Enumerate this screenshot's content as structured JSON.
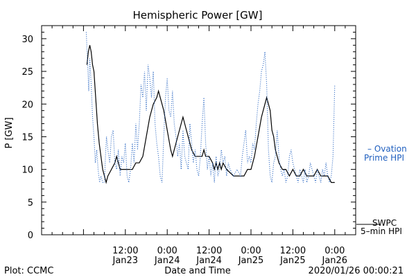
{
  "chart_data": {
    "type": "line",
    "title": "Hemispheric Power [GW]",
    "xlabel": "Date and Time",
    "ylabel": "P [GW]",
    "ylim": [
      0,
      32
    ],
    "yticks": [
      0,
      5,
      10,
      15,
      20,
      25,
      30
    ],
    "xlim_hours": [
      -18,
      72
    ],
    "xticks": [
      {
        "h": 6,
        "time": "12:00",
        "date": "Jan23"
      },
      {
        "h": 18,
        "time": "0:00",
        "date": "Jan24"
      },
      {
        "h": 30,
        "time": "12:00",
        "date": "Jan24"
      },
      {
        "h": 42,
        "time": "0:00",
        "date": "Jan25"
      },
      {
        "h": 54,
        "time": "12:00",
        "date": "Jan25"
      },
      {
        "h": 66,
        "time": "0:00",
        "date": "Jan26"
      }
    ],
    "series": [
      {
        "name": "SWPC 5-min HPI",
        "legend_line1": "SWPC",
        "legend_line2": "5–min HPI",
        "color": "#000000",
        "style": "solid",
        "points": [
          [
            -5,
            26
          ],
          [
            -4.6,
            28
          ],
          [
            -4.2,
            29
          ],
          [
            -3.8,
            28
          ],
          [
            -3.4,
            26
          ],
          [
            -3,
            25
          ],
          [
            -2.5,
            21
          ],
          [
            -2,
            17
          ],
          [
            -1.5,
            14
          ],
          [
            -1,
            12
          ],
          [
            -0.5,
            10
          ],
          [
            0,
            9
          ],
          [
            0.5,
            8
          ],
          [
            1,
            9
          ],
          [
            2,
            10
          ],
          [
            3,
            11
          ],
          [
            3.5,
            12
          ],
          [
            4,
            11
          ],
          [
            4.5,
            10
          ],
          [
            6,
            10
          ],
          [
            8,
            10
          ],
          [
            9,
            11
          ],
          [
            10,
            11
          ],
          [
            11,
            12
          ],
          [
            12,
            15
          ],
          [
            13,
            18
          ],
          [
            14,
            20
          ],
          [
            15,
            21
          ],
          [
            15.5,
            22
          ],
          [
            16,
            21
          ],
          [
            16.5,
            20
          ],
          [
            17,
            19
          ],
          [
            18,
            16
          ],
          [
            19,
            13
          ],
          [
            19.5,
            12
          ],
          [
            20,
            13
          ],
          [
            20.5,
            14
          ],
          [
            21,
            15
          ],
          [
            22,
            17
          ],
          [
            22.5,
            18
          ],
          [
            23,
            17
          ],
          [
            24,
            15
          ],
          [
            25,
            13
          ],
          [
            26,
            12
          ],
          [
            28,
            12
          ],
          [
            28.5,
            13
          ],
          [
            29,
            12
          ],
          [
            30,
            12
          ],
          [
            31,
            11
          ],
          [
            31.5,
            10
          ],
          [
            32,
            11
          ],
          [
            32.5,
            10
          ],
          [
            33,
            11
          ],
          [
            33.5,
            10
          ],
          [
            34,
            11
          ],
          [
            35,
            10
          ],
          [
            37,
            9
          ],
          [
            40,
            9
          ],
          [
            41,
            10
          ],
          [
            42,
            10
          ],
          [
            43,
            12
          ],
          [
            44,
            15
          ],
          [
            45,
            18
          ],
          [
            46,
            20
          ],
          [
            46.5,
            21
          ],
          [
            47,
            20
          ],
          [
            47.5,
            19
          ],
          [
            48,
            16
          ],
          [
            48.5,
            15
          ],
          [
            49,
            13
          ],
          [
            49.5,
            12
          ],
          [
            50,
            11
          ],
          [
            51,
            10
          ],
          [
            52,
            10
          ],
          [
            53,
            9
          ],
          [
            54,
            10
          ],
          [
            55,
            9
          ],
          [
            56,
            9
          ],
          [
            57,
            10
          ],
          [
            58,
            9
          ],
          [
            59,
            9
          ],
          [
            60,
            9
          ],
          [
            61,
            10
          ],
          [
            62,
            9
          ],
          [
            64,
            9
          ],
          [
            65,
            8
          ],
          [
            66,
            8
          ]
        ]
      },
      {
        "name": "Ovation Prime HPI",
        "legend_line1": "– Ovation",
        "legend_line2": "Prime HPI",
        "color": "#1f5fbf",
        "style": "dotted",
        "points": [
          [
            -5.2,
            31
          ],
          [
            -4.8,
            26
          ],
          [
            -4.5,
            22
          ],
          [
            -4.2,
            27
          ],
          [
            -3.8,
            23
          ],
          [
            -3.4,
            18
          ],
          [
            -3,
            15
          ],
          [
            -2.6,
            11
          ],
          [
            -2.2,
            13
          ],
          [
            -1.8,
            10
          ],
          [
            -1.4,
            8
          ],
          [
            -1,
            9
          ],
          [
            -0.5,
            8
          ],
          [
            0,
            8
          ],
          [
            0.3,
            12
          ],
          [
            0.6,
            15
          ],
          [
            1,
            13
          ],
          [
            1.5,
            11
          ],
          [
            2,
            15
          ],
          [
            2.5,
            16
          ],
          [
            3,
            11
          ],
          [
            3.5,
            10
          ],
          [
            4,
            13
          ],
          [
            4.5,
            9
          ],
          [
            5,
            12
          ],
          [
            5.5,
            11
          ],
          [
            6,
            14
          ],
          [
            6.5,
            9
          ],
          [
            7,
            8
          ],
          [
            7.5,
            10
          ],
          [
            8,
            14
          ],
          [
            8.5,
            11
          ],
          [
            9,
            17
          ],
          [
            9.5,
            13
          ],
          [
            10,
            17
          ],
          [
            10.5,
            23
          ],
          [
            11,
            21
          ],
          [
            11.5,
            25
          ],
          [
            12,
            19
          ],
          [
            12.5,
            26
          ],
          [
            13,
            24
          ],
          [
            13.5,
            21
          ],
          [
            14,
            25
          ],
          [
            14.5,
            17
          ],
          [
            15,
            14
          ],
          [
            15.5,
            12
          ],
          [
            16,
            9
          ],
          [
            16.5,
            8
          ],
          [
            17,
            15
          ],
          [
            17.5,
            21
          ],
          [
            18,
            24
          ],
          [
            18.5,
            19
          ],
          [
            19,
            18
          ],
          [
            19.5,
            22
          ],
          [
            20,
            17
          ],
          [
            20.5,
            15
          ],
          [
            21,
            12
          ],
          [
            21.5,
            14
          ],
          [
            22,
            10
          ],
          [
            22.5,
            16
          ],
          [
            23,
            12
          ],
          [
            23.5,
            11
          ],
          [
            24,
            10
          ],
          [
            24.5,
            17
          ],
          [
            25,
            14
          ],
          [
            25.5,
            11
          ],
          [
            26,
            13
          ],
          [
            26.5,
            10
          ],
          [
            27,
            9
          ],
          [
            27.5,
            12
          ],
          [
            28,
            17
          ],
          [
            28.5,
            21
          ],
          [
            29,
            14
          ],
          [
            29.5,
            10
          ],
          [
            30,
            12
          ],
          [
            30.5,
            9
          ],
          [
            31,
            11
          ],
          [
            31.5,
            8
          ],
          [
            32,
            12
          ],
          [
            32.5,
            9
          ],
          [
            33,
            10
          ],
          [
            33.5,
            13
          ],
          [
            34,
            11
          ],
          [
            34.5,
            12
          ],
          [
            35,
            9
          ],
          [
            35.5,
            11
          ],
          [
            36,
            10
          ],
          [
            37,
            9
          ],
          [
            38,
            10
          ],
          [
            39,
            9
          ],
          [
            39.5,
            12
          ],
          [
            40,
            14
          ],
          [
            40.5,
            16
          ],
          [
            41,
            11
          ],
          [
            41.5,
            12
          ],
          [
            42,
            11
          ],
          [
            42.5,
            14
          ],
          [
            43,
            13
          ],
          [
            43.5,
            17
          ],
          [
            44,
            20
          ],
          [
            44.5,
            22
          ],
          [
            45,
            25
          ],
          [
            45.5,
            26
          ],
          [
            46,
            28
          ],
          [
            46.5,
            23
          ],
          [
            47,
            13
          ],
          [
            47.5,
            9
          ],
          [
            48,
            8
          ],
          [
            48.5,
            11
          ],
          [
            49,
            12
          ],
          [
            49.5,
            16
          ],
          [
            50,
            12
          ],
          [
            50.5,
            10
          ],
          [
            51,
            9
          ],
          [
            51.5,
            10
          ],
          [
            52,
            8
          ],
          [
            52.5,
            9
          ],
          [
            53,
            12
          ],
          [
            53.5,
            13
          ],
          [
            54,
            11
          ],
          [
            54.5,
            10
          ],
          [
            55,
            9
          ],
          [
            55.5,
            8
          ],
          [
            56,
            10
          ],
          [
            56.5,
            9
          ],
          [
            57,
            8
          ],
          [
            57.5,
            10
          ],
          [
            58,
            8
          ],
          [
            58.5,
            9
          ],
          [
            59,
            11
          ],
          [
            59.5,
            10
          ],
          [
            60,
            9
          ],
          [
            60.5,
            8
          ],
          [
            61,
            10
          ],
          [
            61.5,
            9
          ],
          [
            62,
            8
          ],
          [
            62.5,
            10
          ],
          [
            63,
            9
          ],
          [
            63.5,
            11
          ],
          [
            64,
            9
          ],
          [
            64.5,
            8
          ],
          [
            65,
            9
          ],
          [
            65.5,
            12
          ],
          [
            66,
            23
          ]
        ]
      }
    ],
    "footer": {
      "left": "Plot: CCMC",
      "right": "2020/01/26 00:00:21"
    }
  }
}
